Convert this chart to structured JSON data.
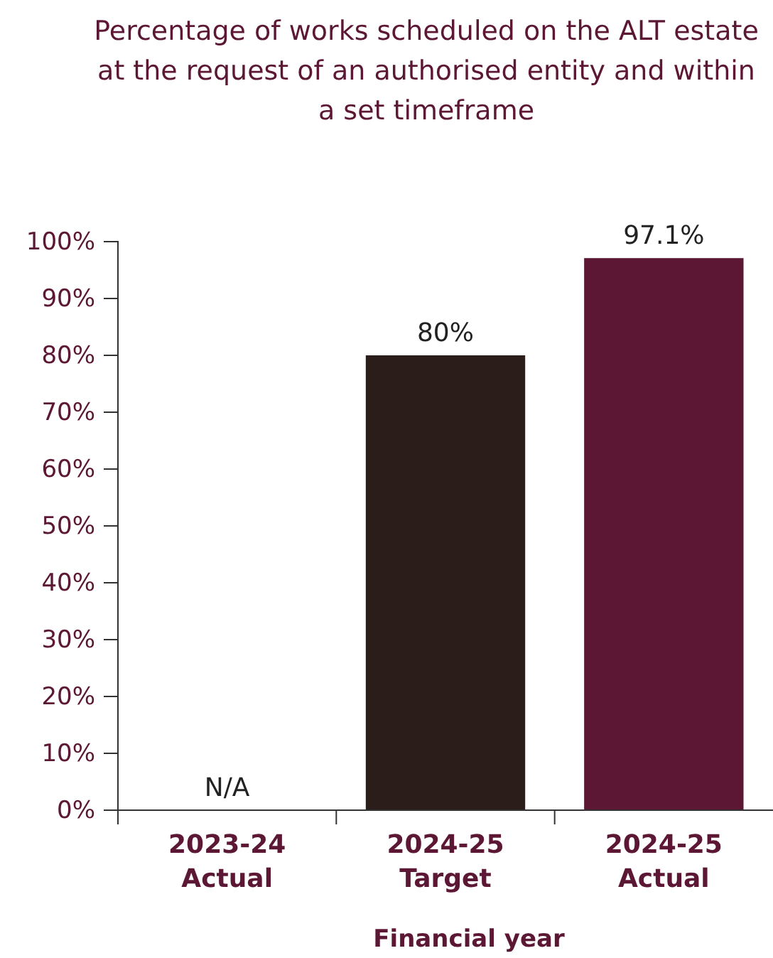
{
  "chart_data": {
    "type": "bar",
    "title": "Percentage of works scheduled on the ALT estate at the request of an authorised entity and within a set timeframe",
    "xlabel": "Financial year",
    "categories": [
      "2023-24 Actual",
      "2024-25 Target",
      "2024-25 Actual"
    ],
    "values": [
      null,
      80,
      97.1
    ],
    "colors": [
      null,
      "#2b1d1a",
      "#5c1734"
    ],
    "value_labels": [
      "N/A",
      "80%",
      "97.1%"
    ],
    "ylim": [
      0,
      100
    ],
    "yticks": [
      {
        "value": 0,
        "label": "0%"
      },
      {
        "value": 10,
        "label": "10%"
      },
      {
        "value": 20,
        "label": "20%"
      },
      {
        "value": 30,
        "label": "30%"
      },
      {
        "value": 40,
        "label": "40%"
      },
      {
        "value": 50,
        "label": "50%"
      },
      {
        "value": 60,
        "label": "60%"
      },
      {
        "value": 70,
        "label": "70%"
      },
      {
        "value": 80,
        "label": "80%"
      },
      {
        "value": 90,
        "label": "90%"
      },
      {
        "value": 100,
        "label": "100%"
      }
    ],
    "grid": false
  }
}
